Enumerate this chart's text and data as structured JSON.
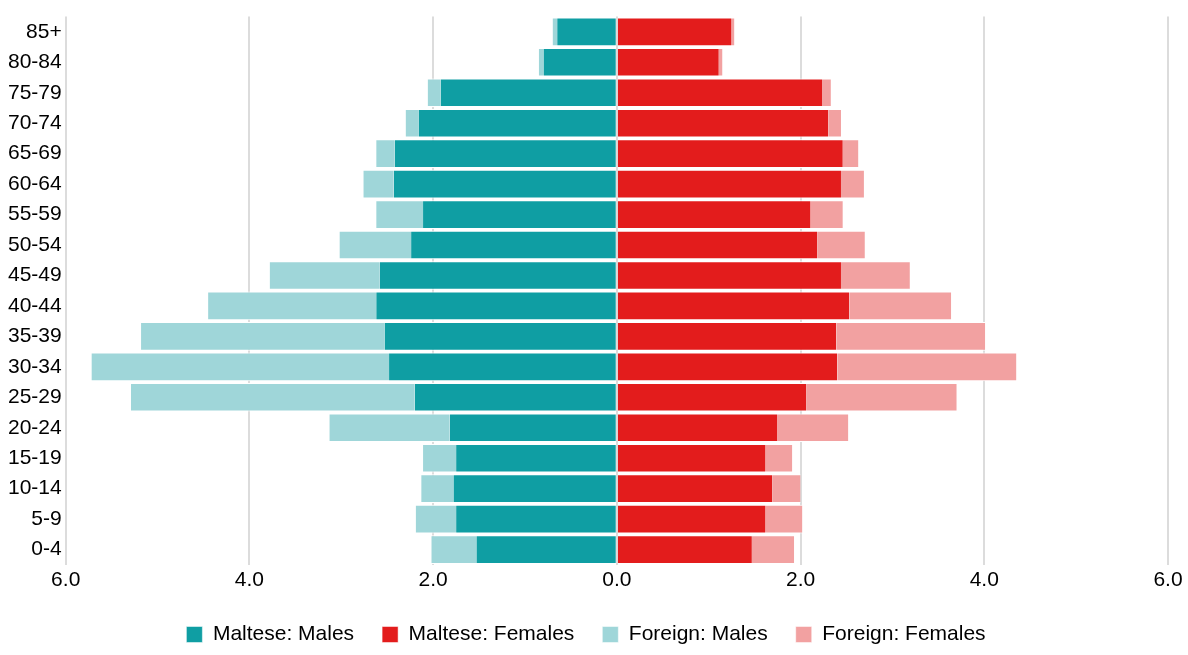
{
  "chart_data": {
    "type": "bar",
    "orientation": "horizontal",
    "stacked": true,
    "categories": [
      "85+",
      "80-84",
      "75-79",
      "70-74",
      "65-69",
      "60-64",
      "55-59",
      "50-54",
      "45-49",
      "40-44",
      "35-39",
      "30-34",
      "25-29",
      "20-24",
      "15-19",
      "10-14",
      "5-9",
      "0-4"
    ],
    "series": [
      {
        "name": "Maltese: Males",
        "color": "#0f9ea3",
        "values": [
          -0.65,
          -0.8,
          -1.92,
          -2.16,
          -2.42,
          -2.43,
          -2.11,
          -2.24,
          -2.58,
          -2.62,
          -2.53,
          -2.48,
          -2.2,
          -1.82,
          -1.75,
          -1.78,
          -1.75,
          -1.53
        ]
      },
      {
        "name": "Maltese: Females",
        "color": "#e31c1c",
        "values": [
          1.25,
          1.11,
          2.24,
          2.3,
          2.46,
          2.44,
          2.11,
          2.18,
          2.44,
          2.53,
          2.39,
          2.4,
          2.06,
          1.75,
          1.62,
          1.69,
          1.62,
          1.47
        ]
      },
      {
        "name": "Foreign: Males",
        "color": "#9fd6d9",
        "values": [
          -0.05,
          -0.05,
          -0.14,
          -0.14,
          -0.2,
          -0.33,
          -0.51,
          -0.78,
          -1.2,
          -1.83,
          -2.65,
          -3.24,
          -3.09,
          -1.31,
          -0.36,
          -0.35,
          -0.44,
          -0.49
        ]
      },
      {
        "name": "Foreign: Females",
        "color": "#f2a1a1",
        "values": [
          0.03,
          0.04,
          0.09,
          0.14,
          0.17,
          0.25,
          0.35,
          0.52,
          0.75,
          1.11,
          1.62,
          1.95,
          1.64,
          0.77,
          0.29,
          0.31,
          0.4,
          0.46
        ]
      }
    ],
    "xlim": [
      -6,
      6
    ],
    "xticks": [
      {
        "value": -6,
        "label": "6.0"
      },
      {
        "value": -4,
        "label": "4.0"
      },
      {
        "value": -2,
        "label": "2.0"
      },
      {
        "value": 0,
        "label": "0.0"
      },
      {
        "value": 2,
        "label": "2.0"
      },
      {
        "value": 4,
        "label": "4.0"
      },
      {
        "value": 6,
        "label": "6.0"
      }
    ],
    "grid": "x",
    "legend": "bottom"
  }
}
